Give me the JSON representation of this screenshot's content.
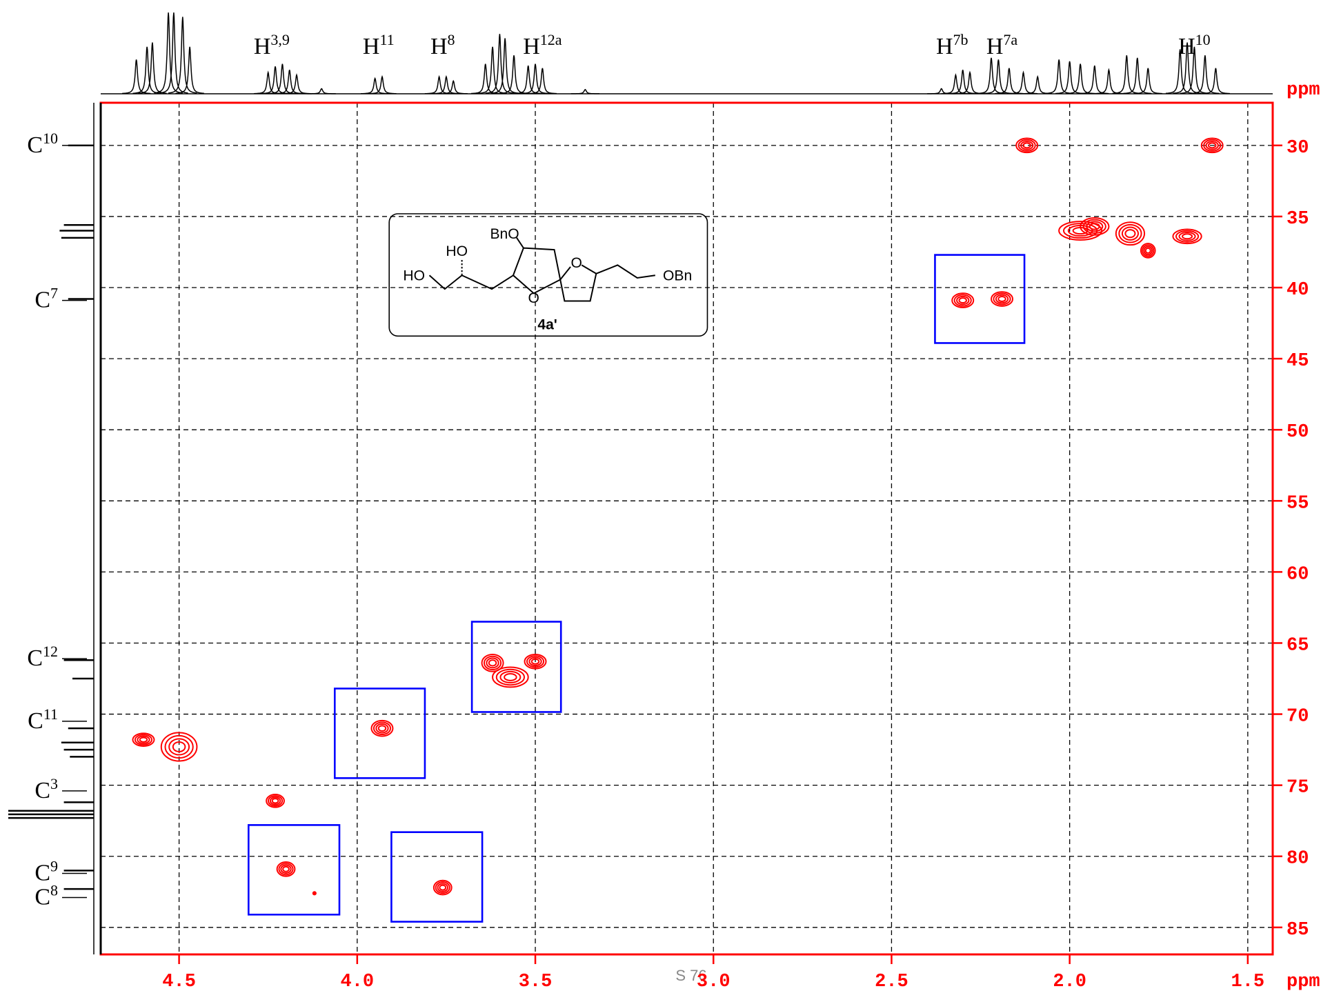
{
  "chart_data": {
    "type": "hsqc",
    "xlim": [
      4.72,
      1.43
    ],
    "ylim": [
      27,
      86.9
    ],
    "xticks": [
      4.5,
      {
        "value": 4,
        "label": "4.0"
      },
      3.5,
      {
        "value": 3,
        "label": "3.0"
      },
      2.5,
      {
        "value": 2,
        "label": "2.0"
      },
      1.5
    ],
    "yticks": [
      30,
      35,
      40,
      45,
      50,
      55,
      60,
      65,
      70,
      75,
      80,
      85
    ],
    "x_unit": "ppm",
    "y_unit": "ppm",
    "grid": true,
    "axis_color": "#ff0000",
    "peak_color": "#ff0000",
    "box_color": "#0000ff",
    "peaks": [
      {
        "x": 2.12,
        "y": 30,
        "dx": 0.03,
        "dy": 0.5
      },
      {
        "x": 1.6,
        "y": 30,
        "dx": 0.03,
        "dy": 0.5
      },
      {
        "x": 1.97,
        "y": 36,
        "dx": 0.06,
        "dy": 0.65
      },
      {
        "x": 1.93,
        "y": 35.7,
        "dx": 0.04,
        "dy": 0.6
      },
      {
        "x": 1.83,
        "y": 36.2,
        "dx": 0.04,
        "dy": 0.8
      },
      {
        "x": 1.78,
        "y": 37.4,
        "dx": 0.02,
        "dy": 0.5
      },
      {
        "x": 1.67,
        "y": 36.4,
        "dx": 0.04,
        "dy": 0.5
      },
      {
        "x": 2.3,
        "y": 40.9,
        "dx": 0.03,
        "dy": 0.5
      },
      {
        "x": 2.19,
        "y": 40.8,
        "dx": 0.03,
        "dy": 0.5
      },
      {
        "x": 3.62,
        "y": 66.4,
        "dx": 0.03,
        "dy": 0.6
      },
      {
        "x": 3.57,
        "y": 67.4,
        "dx": 0.05,
        "dy": 0.7
      },
      {
        "x": 3.5,
        "y": 66.3,
        "dx": 0.03,
        "dy": 0.5
      },
      {
        "x": 3.93,
        "y": 71,
        "dx": 0.03,
        "dy": 0.55
      },
      {
        "x": 4.6,
        "y": 71.8,
        "dx": 0.03,
        "dy": 0.45
      },
      {
        "x": 4.5,
        "y": 72.3,
        "dx": 0.05,
        "dy": 1.0
      },
      {
        "x": 4.23,
        "y": 76.1,
        "dx": 0.025,
        "dy": 0.45
      },
      {
        "x": 4.2,
        "y": 80.9,
        "dx": 0.025,
        "dy": 0.5
      },
      {
        "x": 3.76,
        "y": 82.2,
        "dx": 0.025,
        "dy": 0.5
      },
      {
        "x": 4.12,
        "y": 82.6,
        "dx": 0.004,
        "dy": 0.1
      }
    ],
    "boxes": [
      {
        "xlim": [
          2.378,
          2.127
        ],
        "ylim": [
          37.7,
          43.9
        ]
      },
      {
        "xlim": [
          3.678,
          3.428
        ],
        "ylim": [
          63.5,
          69.85
        ]
      },
      {
        "xlim": [
          4.063,
          3.81
        ],
        "ylim": [
          68.2,
          74.5
        ]
      },
      {
        "xlim": [
          4.305,
          4.05
        ],
        "ylim": [
          77.8,
          84.1
        ]
      },
      {
        "xlim": [
          3.904,
          3.649
        ],
        "ylim": [
          78.3,
          84.6
        ]
      }
    ],
    "proton_projection": [
      {
        "x": 4.62,
        "h": 0.4
      },
      {
        "x": 4.59,
        "h": 0.55
      },
      {
        "x": 4.575,
        "h": 0.6
      },
      {
        "x": 4.53,
        "h": 0.95
      },
      {
        "x": 4.515,
        "h": 0.95
      },
      {
        "x": 4.49,
        "h": 0.9
      },
      {
        "x": 4.47,
        "h": 0.55
      },
      {
        "x": 4.25,
        "h": 0.25
      },
      {
        "x": 4.23,
        "h": 0.32
      },
      {
        "x": 4.21,
        "h": 0.35
      },
      {
        "x": 4.19,
        "h": 0.28
      },
      {
        "x": 4.17,
        "h": 0.22
      },
      {
        "x": 4.1,
        "h": 0.06
      },
      {
        "x": 3.95,
        "h": 0.18
      },
      {
        "x": 3.93,
        "h": 0.2
      },
      {
        "x": 3.77,
        "h": 0.2
      },
      {
        "x": 3.75,
        "h": 0.2
      },
      {
        "x": 3.73,
        "h": 0.15
      },
      {
        "x": 3.64,
        "h": 0.35
      },
      {
        "x": 3.62,
        "h": 0.55
      },
      {
        "x": 3.6,
        "h": 0.7
      },
      {
        "x": 3.585,
        "h": 0.65
      },
      {
        "x": 3.56,
        "h": 0.45
      },
      {
        "x": 3.52,
        "h": 0.33
      },
      {
        "x": 3.5,
        "h": 0.35
      },
      {
        "x": 3.48,
        "h": 0.3
      },
      {
        "x": 3.36,
        "h": 0.05
      },
      {
        "x": 2.36,
        "h": 0.06
      },
      {
        "x": 2.32,
        "h": 0.22
      },
      {
        "x": 2.3,
        "h": 0.28
      },
      {
        "x": 2.28,
        "h": 0.25
      },
      {
        "x": 2.22,
        "h": 0.42
      },
      {
        "x": 2.2,
        "h": 0.4
      },
      {
        "x": 2.17,
        "h": 0.3
      },
      {
        "x": 2.13,
        "h": 0.25
      },
      {
        "x": 2.09,
        "h": 0.2
      },
      {
        "x": 2.03,
        "h": 0.4
      },
      {
        "x": 2.0,
        "h": 0.38
      },
      {
        "x": 1.97,
        "h": 0.35
      },
      {
        "x": 1.93,
        "h": 0.33
      },
      {
        "x": 1.89,
        "h": 0.28
      },
      {
        "x": 1.84,
        "h": 0.45
      },
      {
        "x": 1.81,
        "h": 0.42
      },
      {
        "x": 1.78,
        "h": 0.3
      },
      {
        "x": 1.69,
        "h": 0.52
      },
      {
        "x": 1.67,
        "h": 0.6
      },
      {
        "x": 1.65,
        "h": 0.55
      },
      {
        "x": 1.62,
        "h": 0.45
      },
      {
        "x": 1.59,
        "h": 0.3
      }
    ],
    "carbon_projection": [
      {
        "y": 30,
        "h": 0.3
      },
      {
        "y": 35.6,
        "h": 0.35
      },
      {
        "y": 36,
        "h": 0.4
      },
      {
        "y": 36.5,
        "h": 0.38
      },
      {
        "y": 40.8,
        "h": 0.3
      },
      {
        "y": 66.2,
        "h": 0.35
      },
      {
        "y": 67.5,
        "h": 0.25
      },
      {
        "y": 71,
        "h": 0.3
      },
      {
        "y": 72,
        "h": 0.38
      },
      {
        "y": 72.5,
        "h": 0.35
      },
      {
        "y": 73,
        "h": 0.28
      },
      {
        "y": 76.2,
        "h": 0.35
      },
      {
        "y": 76.8,
        "h": 1.0
      },
      {
        "y": 77.05,
        "h": 1.0
      },
      {
        "y": 77.3,
        "h": 1.0
      },
      {
        "y": 81,
        "h": 0.35
      },
      {
        "y": 82.3,
        "h": 0.35
      }
    ],
    "proton_labels": [
      {
        "text": "H",
        "sup": "3,9",
        "x": 4.24
      },
      {
        "text": "H",
        "sup": "11",
        "x": 3.94
      },
      {
        "text": "H",
        "sup": "8",
        "x": 3.76
      },
      {
        "text": "H",
        "sup": "12a",
        "x": 3.48
      },
      {
        "text": "H",
        "sup": "7b",
        "x": 2.33
      },
      {
        "text": "H",
        "sup": "7a",
        "x": 2.19
      },
      {
        "text": "H",
        "sup": "10",
        "x": 1.65
      }
    ],
    "carbon_labels": [
      {
        "text": "C",
        "sup": "10",
        "y": 30
      },
      {
        "text": "C",
        "sup": "7",
        "y": 40.9
      },
      {
        "text": "C",
        "sup": "12",
        "y": 66.1
      },
      {
        "text": "C",
        "sup": "11",
        "y": 70.5
      },
      {
        "text": "C",
        "sup": "3",
        "y": 75.4
      },
      {
        "text": "C",
        "sup": "9",
        "y": 81.2
      },
      {
        "text": "C",
        "sup": "8",
        "y": 82.9
      }
    ]
  },
  "structure": {
    "labels": [
      "BnO",
      "HO",
      "HO",
      "O",
      "O",
      "OBn"
    ],
    "compound": "4a'"
  },
  "footer": "S 76"
}
